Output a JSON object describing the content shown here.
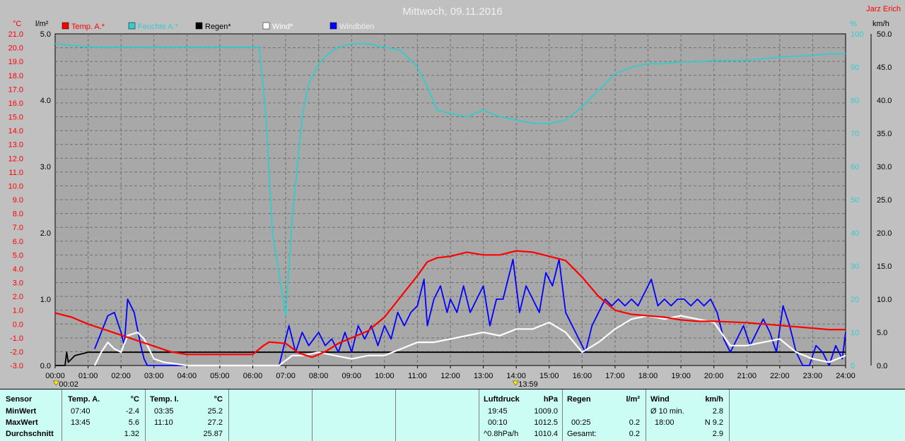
{
  "title": "Mittwoch, 09.11.2016",
  "author": "Jarz Erich",
  "colors": {
    "temp": "#ff0000",
    "humidity": "#33cccc",
    "rain": "#000000",
    "wind": "#ffffff",
    "gust": "#0000ff",
    "bg": "#a8a8a8",
    "footer_bg": "#ccfdf5"
  },
  "chart_data": {
    "type": "line",
    "axes": {
      "temp": {
        "unit": "°C",
        "min": -3,
        "max": 21,
        "ticks": [
          "21.0",
          "20.0",
          "19.0",
          "18.0",
          "17.0",
          "16.0",
          "15.0",
          "14.0",
          "13.0",
          "12.0",
          "11.0",
          "10.0",
          "9.0",
          "8.0",
          "7.0",
          "6.0",
          "5.0",
          "4.0",
          "3.0",
          "2.0",
          "1.0",
          "0.0",
          "-1.0",
          "-2.0",
          "-3.0"
        ]
      },
      "rain": {
        "unit": "l/m²",
        "min": 0,
        "max": 5,
        "ticks": [
          "5.0",
          "4.0",
          "3.0",
          "2.0",
          "1.0",
          "0.0"
        ]
      },
      "humidity": {
        "unit": "%",
        "min": 0,
        "max": 100,
        "ticks": [
          "100",
          "90",
          "80",
          "70",
          "60",
          "50",
          "40",
          "30",
          "20",
          "10",
          "0"
        ]
      },
      "wind": {
        "unit": "km/h",
        "min": 0,
        "max": 50,
        "ticks": [
          "50.0",
          "45.0",
          "40.0",
          "35.0",
          "30.0",
          "25.0",
          "20.0",
          "15.0",
          "10.0",
          "5.0",
          "0.0"
        ]
      }
    },
    "x_ticks": [
      "00:00",
      "01:00",
      "02:00",
      "03:00",
      "04:00",
      "05:00",
      "06:00",
      "07:00",
      "08:00",
      "09:00",
      "10:00",
      "11:00",
      "12:00",
      "13:00",
      "14:00",
      "15:00",
      "16:00",
      "17:00",
      "18:00",
      "19:00",
      "20:00",
      "21:00",
      "22:00",
      "23:00",
      "24:00"
    ],
    "markers": [
      {
        "label": "00:02",
        "x": 0.03
      },
      {
        "label": "13:59",
        "x": 13.98
      }
    ],
    "legend": [
      "Temp. A.*",
      "Feuchte A.*",
      "Regen*",
      "Wind*",
      "Windböen"
    ],
    "series": [
      {
        "name": "Temp. A.*",
        "axis": "temp",
        "x": [
          0,
          0.5,
          1,
          1.5,
          2,
          2.5,
          3,
          3.5,
          4,
          5,
          6,
          6.3,
          6.5,
          7,
          7.4,
          7.8,
          8.2,
          8.6,
          9,
          9.5,
          10,
          10.5,
          11,
          11.3,
          11.6,
          12,
          12.5,
          13,
          13.5,
          14,
          14.5,
          15,
          15.5,
          16,
          16.5,
          17,
          17.5,
          18,
          18.5,
          19,
          19.5,
          20,
          21,
          22,
          23,
          23.5,
          24
        ],
        "y": [
          0.8,
          0.5,
          0,
          -0.4,
          -0.8,
          -1.2,
          -1.6,
          -2.0,
          -2.2,
          -2.2,
          -2.2,
          -1.6,
          -1.3,
          -1.4,
          -2.1,
          -2.4,
          -2.0,
          -1.4,
          -1.0,
          -0.5,
          0.5,
          2.0,
          3.5,
          4.5,
          4.8,
          4.9,
          5.2,
          5.0,
          5.0,
          5.3,
          5.2,
          4.9,
          4.6,
          3.4,
          2.0,
          1.0,
          0.7,
          0.6,
          0.5,
          0.3,
          0.2,
          0.2,
          0.1,
          -0.1,
          -0.3,
          -0.4,
          -0.4
        ]
      },
      {
        "name": "Feuchte A.*",
        "axis": "humidity",
        "x": [
          0,
          0.5,
          1,
          2,
          3,
          4,
          5,
          6,
          6.2,
          6.4,
          6.6,
          7,
          7.2,
          7.5,
          7.7,
          8,
          8.3,
          8.6,
          9,
          9.5,
          10,
          10.5,
          11,
          11.3,
          11.6,
          12,
          12.5,
          13,
          13.5,
          14,
          14.5,
          15,
          15.5,
          16,
          16.5,
          17,
          17.5,
          18,
          18.5,
          19,
          19.5,
          20,
          21,
          22,
          23,
          23.5,
          24
        ],
        "y": [
          97,
          96.5,
          96,
          96,
          96,
          96,
          96,
          96,
          96,
          75,
          40,
          15,
          45,
          75,
          85,
          91,
          94,
          96,
          97,
          97,
          96,
          95,
          90,
          84,
          77,
          76,
          75,
          77,
          75,
          74,
          73,
          73,
          74,
          78,
          83,
          88,
          90,
          91,
          91,
          91.5,
          91.5,
          92,
          92,
          93,
          93.5,
          94,
          94
        ]
      },
      {
        "name": "Regen*",
        "axis": "rain",
        "x": [
          0,
          0.3,
          0.35,
          0.4,
          0.6,
          1,
          1.5,
          2,
          24
        ],
        "y": [
          0,
          0,
          0.2,
          0.05,
          0.15,
          0.2,
          0.2,
          0.2,
          0.2
        ]
      },
      {
        "name": "Wind*",
        "axis": "wind",
        "x": [
          1.2,
          1.4,
          1.6,
          1.8,
          2,
          2.2,
          2.5,
          2.7,
          2.9,
          3,
          3.3,
          3.6,
          4,
          6.8,
          7.2,
          7.5,
          8,
          8.5,
          9,
          9.5,
          10,
          10.5,
          11,
          11.5,
          12,
          12.5,
          13,
          13.5,
          14,
          14.5,
          15,
          15.5,
          16,
          16.5,
          17,
          17.5,
          18,
          18.5,
          19,
          19.5,
          20,
          20.5,
          21,
          21.5,
          22,
          22.5,
          23,
          23.5,
          24
        ],
        "y": [
          0,
          2,
          3.5,
          2.5,
          2,
          4.5,
          5,
          4,
          2,
          1,
          0.5,
          0.3,
          0,
          0,
          1.5,
          1.5,
          2,
          1.5,
          1,
          1.5,
          1.5,
          2.5,
          3.5,
          3.5,
          4,
          4.5,
          5,
          4.5,
          5.5,
          5.5,
          6.5,
          5,
          2,
          3.5,
          5.5,
          7,
          7.5,
          7,
          7.5,
          7,
          6.5,
          3,
          3,
          3.5,
          4,
          2,
          1,
          0.5,
          1.5
        ]
      },
      {
        "name": "Windböen",
        "axis": "wind",
        "x": [
          1.2,
          1.4,
          1.6,
          1.8,
          2,
          2.1,
          2.2,
          2.4,
          2.6,
          2.7,
          2.8,
          6.8,
          6.9,
          7.1,
          7.3,
          7.5,
          7.7,
          8,
          8.2,
          8.4,
          8.6,
          8.8,
          9,
          9.2,
          9.4,
          9.6,
          9.8,
          10,
          10.2,
          10.4,
          10.6,
          10.8,
          11,
          11.2,
          11.3,
          11.5,
          11.7,
          11.9,
          12,
          12.2,
          12.4,
          12.6,
          12.8,
          13,
          13.2,
          13.4,
          13.6,
          13.8,
          13.9,
          14.1,
          14.3,
          14.5,
          14.7,
          14.9,
          15.1,
          15.3,
          15.5,
          15.7,
          15.9,
          16.1,
          16.3,
          16.5,
          16.7,
          16.9,
          17.1,
          17.3,
          17.5,
          17.7,
          17.9,
          18.1,
          18.3,
          18.5,
          18.7,
          18.9,
          19.1,
          19.3,
          19.5,
          19.7,
          19.9,
          20.1,
          20.3,
          20.5,
          20.7,
          20.9,
          21.1,
          21.3,
          21.5,
          21.7,
          21.9,
          22.1,
          22.3,
          22.5,
          22.7,
          22.9,
          23.1,
          23.3,
          23.5,
          23.7,
          23.9,
          24
        ],
        "y": [
          2.5,
          5,
          7.5,
          8,
          5,
          3,
          10,
          8,
          3,
          1,
          0,
          0,
          2,
          6,
          2,
          5,
          3,
          5,
          3,
          4,
          2,
          5,
          2,
          6,
          4,
          6,
          3,
          6,
          4,
          8,
          6,
          8,
          9,
          13,
          6,
          10,
          12,
          8,
          10,
          8,
          12,
          8,
          10,
          12,
          6,
          10,
          10,
          14,
          16,
          8,
          12,
          10,
          8,
          14,
          12,
          16,
          8,
          6,
          4,
          2,
          6,
          8,
          10,
          9,
          10,
          9,
          10,
          9,
          11,
          13,
          9,
          10,
          9,
          10,
          10,
          9,
          10,
          9,
          10,
          8,
          4,
          2,
          4,
          6,
          3,
          5,
          7,
          5,
          2,
          9,
          6,
          2,
          0,
          0,
          3,
          2,
          0,
          3,
          1,
          5
        ]
      }
    ]
  },
  "footer": {
    "sensor": {
      "header": "Sensor",
      "rows": [
        "MinWert",
        "MaxWert",
        "Durchschnitt"
      ]
    },
    "temp_a": {
      "header": "Temp. A.",
      "unit": "°C",
      "times": [
        "07:40",
        "13:45",
        ""
      ],
      "values": [
        "-2.4",
        "5.6",
        "1.32"
      ]
    },
    "temp_i": {
      "header": "Temp. I.",
      "unit": "°C",
      "times": [
        "03:35",
        "11:10",
        ""
      ],
      "values": [
        "25.2",
        "27.2",
        "25.87"
      ]
    },
    "luftdruck": {
      "header": "Luftdruck",
      "unit": "hPa",
      "times": [
        "19:45",
        "00:10",
        "^0.8hPa/h"
      ],
      "values": [
        "1009.0",
        "1012.5",
        "1010.4"
      ]
    },
    "regen": {
      "header": "Regen",
      "unit": "l/m²",
      "times": [
        "",
        "00:25",
        "Gesamt:"
      ],
      "values": [
        "",
        "0.2",
        "0.2"
      ]
    },
    "wind": {
      "header": "Wind",
      "unit": "km/h",
      "times": [
        "Ø 10 min.",
        "18:00",
        ""
      ],
      "values": [
        "2.8",
        "N 9.2",
        "2.9"
      ]
    }
  }
}
